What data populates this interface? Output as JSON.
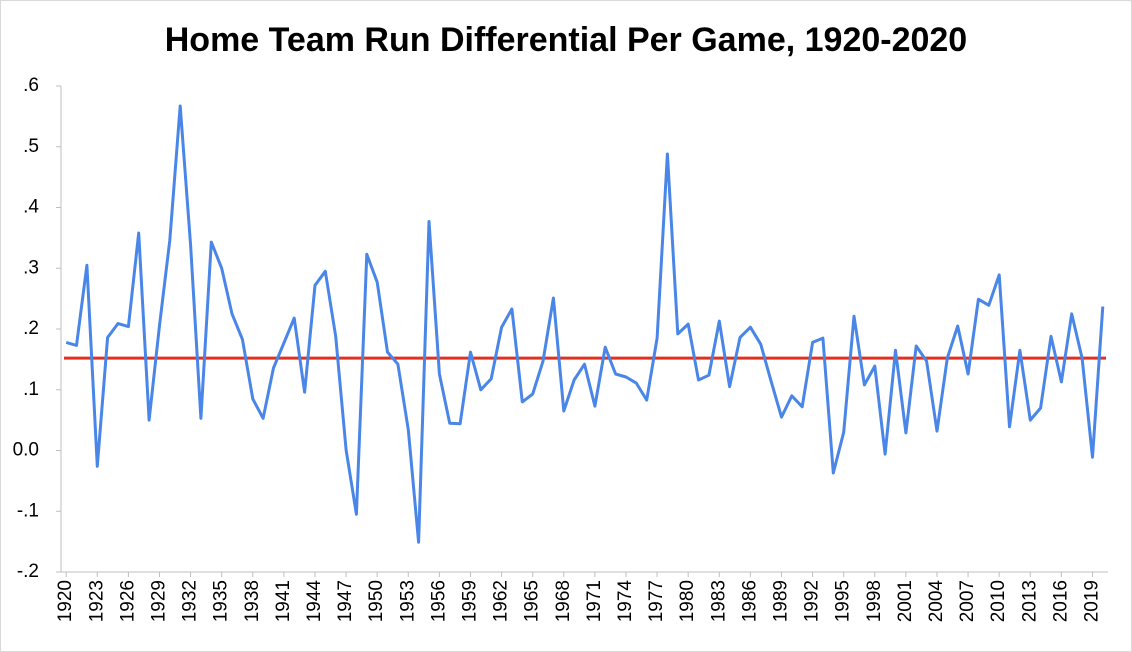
{
  "chart_data": {
    "type": "line",
    "title": "Home Team Run Differential Per Game, 1920-2020",
    "categories": [
      "1920",
      null,
      null,
      "1923",
      null,
      null,
      "1926",
      null,
      null,
      "1929",
      null,
      null,
      "1932",
      null,
      null,
      "1935",
      null,
      null,
      "1938",
      null,
      null,
      "1941",
      null,
      null,
      "1944",
      null,
      null,
      "1947",
      null,
      null,
      "1950",
      null,
      null,
      "1953",
      null,
      null,
      "1956",
      null,
      null,
      "1959",
      null,
      null,
      "1962",
      null,
      null,
      "1965",
      null,
      null,
      "1968",
      null,
      null,
      "1971",
      null,
      null,
      "1974",
      null,
      null,
      "1977",
      null,
      null,
      "1980",
      null,
      null,
      "1983",
      null,
      null,
      "1986",
      null,
      null,
      "1989",
      null,
      null,
      "1992",
      null,
      null,
      "1995",
      null,
      null,
      "1998",
      null,
      null,
      "2001",
      null,
      null,
      "2004",
      null,
      null,
      "2007",
      null,
      null,
      "2010",
      null,
      null,
      "2013",
      null,
      null,
      "2016",
      null,
      null,
      "2019",
      null
    ],
    "series": [
      {
        "color": "#4a86e8",
        "values": [
          0.178,
          0.173,
          0.305,
          -0.026,
          0.186,
          0.209,
          0.204,
          0.358,
          0.05,
          0.206,
          0.346,
          0.567,
          0.338,
          0.053,
          0.343,
          0.3,
          0.225,
          0.183,
          0.085,
          0.053,
          0.136,
          0.177,
          0.218,
          0.096,
          0.272,
          0.295,
          0.188,
          0.001,
          -0.105,
          0.323,
          0.277,
          0.162,
          0.142,
          0.034,
          -0.151,
          0.377,
          0.126,
          0.045,
          0.044,
          0.162,
          0.1,
          0.118,
          0.203,
          0.233,
          0.08,
          0.093,
          0.147,
          0.251,
          0.065,
          0.116,
          0.142,
          0.073,
          0.17,
          0.126,
          0.121,
          0.111,
          0.083,
          0.185,
          0.488,
          0.192,
          0.208,
          0.116,
          0.124,
          0.213,
          0.105,
          0.186,
          0.203,
          0.175,
          0.114,
          0.055,
          0.09,
          0.072,
          0.178,
          0.185,
          -0.037,
          0.03,
          0.221,
          0.108,
          0.139,
          -0.006,
          0.165,
          0.029,
          0.172,
          0.147,
          0.032,
          0.152,
          0.205,
          0.126,
          0.249,
          0.239,
          0.289,
          0.039,
          0.165,
          0.05,
          0.07,
          0.188,
          0.113,
          0.225,
          0.152,
          -0.011,
          0.237
        ]
      }
    ],
    "reference_line": {
      "value": 0.152,
      "color": "#e0301e"
    },
    "ylim": [
      -0.2,
      0.6
    ],
    "yticks": [
      {
        "value": 0.6,
        "label": ".6"
      },
      {
        "value": 0.5,
        "label": ".5"
      },
      {
        "value": 0.4,
        "label": ".4"
      },
      {
        "value": 0.3,
        "label": ".3"
      },
      {
        "value": 0.2,
        "label": ".2"
      },
      {
        "value": 0.1,
        "label": ".1"
      },
      {
        "value": 0,
        "label": "0.0"
      },
      {
        "value": -0.1,
        "label": "-.1"
      },
      {
        "value": -0.2,
        "label": "-.2"
      }
    ],
    "grid": false
  }
}
